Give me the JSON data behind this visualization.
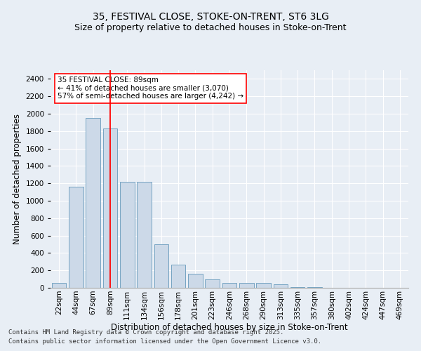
{
  "title_line1": "35, FESTIVAL CLOSE, STOKE-ON-TRENT, ST6 3LG",
  "title_line2": "Size of property relative to detached houses in Stoke-on-Trent",
  "xlabel": "Distribution of detached houses by size in Stoke-on-Trent",
  "ylabel": "Number of detached properties",
  "categories": [
    "22sqm",
    "44sqm",
    "67sqm",
    "89sqm",
    "111sqm",
    "134sqm",
    "156sqm",
    "178sqm",
    "201sqm",
    "223sqm",
    "246sqm",
    "268sqm",
    "290sqm",
    "313sqm",
    "335sqm",
    "357sqm",
    "380sqm",
    "402sqm",
    "424sqm",
    "447sqm",
    "469sqm"
  ],
  "values": [
    60,
    1160,
    1950,
    1830,
    1220,
    1220,
    500,
    270,
    160,
    100,
    60,
    60,
    55,
    40,
    10,
    5,
    2,
    2,
    2,
    2,
    2
  ],
  "bar_color": "#ccd9e8",
  "bar_edge_color": "#6699bb",
  "vline_x_index": 3,
  "vline_color": "red",
  "annotation_text": "35 FESTIVAL CLOSE: 89sqm\n← 41% of detached houses are smaller (3,070)\n57% of semi-detached houses are larger (4,242) →",
  "annotation_box_color": "white",
  "annotation_box_edge": "red",
  "ylim": [
    0,
    2500
  ],
  "yticks": [
    0,
    200,
    400,
    600,
    800,
    1000,
    1200,
    1400,
    1600,
    1800,
    2000,
    2200,
    2400
  ],
  "background_color": "#e8eef5",
  "footer_line1": "Contains HM Land Registry data © Crown copyright and database right 2025.",
  "footer_line2": "Contains public sector information licensed under the Open Government Licence v3.0.",
  "title_fontsize": 10,
  "subtitle_fontsize": 9,
  "axis_label_fontsize": 8.5,
  "tick_fontsize": 7.5,
  "annotation_fontsize": 7.5,
  "footer_fontsize": 6.5
}
